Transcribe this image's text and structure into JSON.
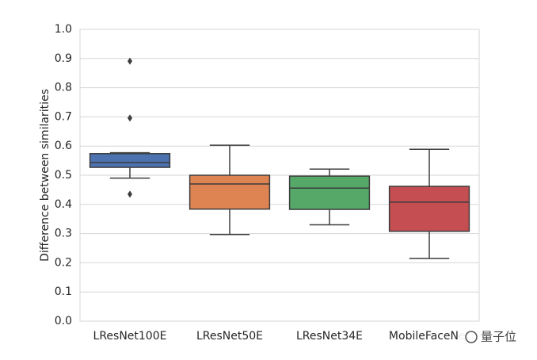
{
  "chart_data": {
    "type": "box",
    "ylabel": "Difference between similarities",
    "categories": [
      "LResNet100E",
      "LResNet50E",
      "LResNet34E",
      "MobileFaceNet"
    ],
    "colors": [
      "#4c72b0",
      "#dd8452",
      "#55a868",
      "#c44e52"
    ],
    "boxes": [
      {
        "whislo": 0.49,
        "q1": 0.527,
        "med": 0.543,
        "q3": 0.574,
        "whishi": 0.577,
        "fliers": [
          0.891,
          0.696,
          0.435
        ]
      },
      {
        "whislo": 0.297,
        "q1": 0.384,
        "med": 0.47,
        "q3": 0.5,
        "whishi": 0.603,
        "fliers": []
      },
      {
        "whislo": 0.33,
        "q1": 0.383,
        "med": 0.456,
        "q3": 0.497,
        "whishi": 0.521,
        "fliers": []
      },
      {
        "whislo": 0.215,
        "q1": 0.308,
        "med": 0.408,
        "q3": 0.462,
        "whishi": 0.589,
        "fliers": []
      }
    ],
    "ylim": [
      0,
      1
    ],
    "yticks": [
      {
        "value": 0,
        "label": "0.0"
      },
      0.1,
      0.2,
      0.3,
      0.4,
      0.5,
      0.6,
      0.7,
      0.8,
      0.9,
      {
        "value": 1,
        "label": "1.0"
      }
    ],
    "grid": true,
    "watermark": "量子位"
  }
}
